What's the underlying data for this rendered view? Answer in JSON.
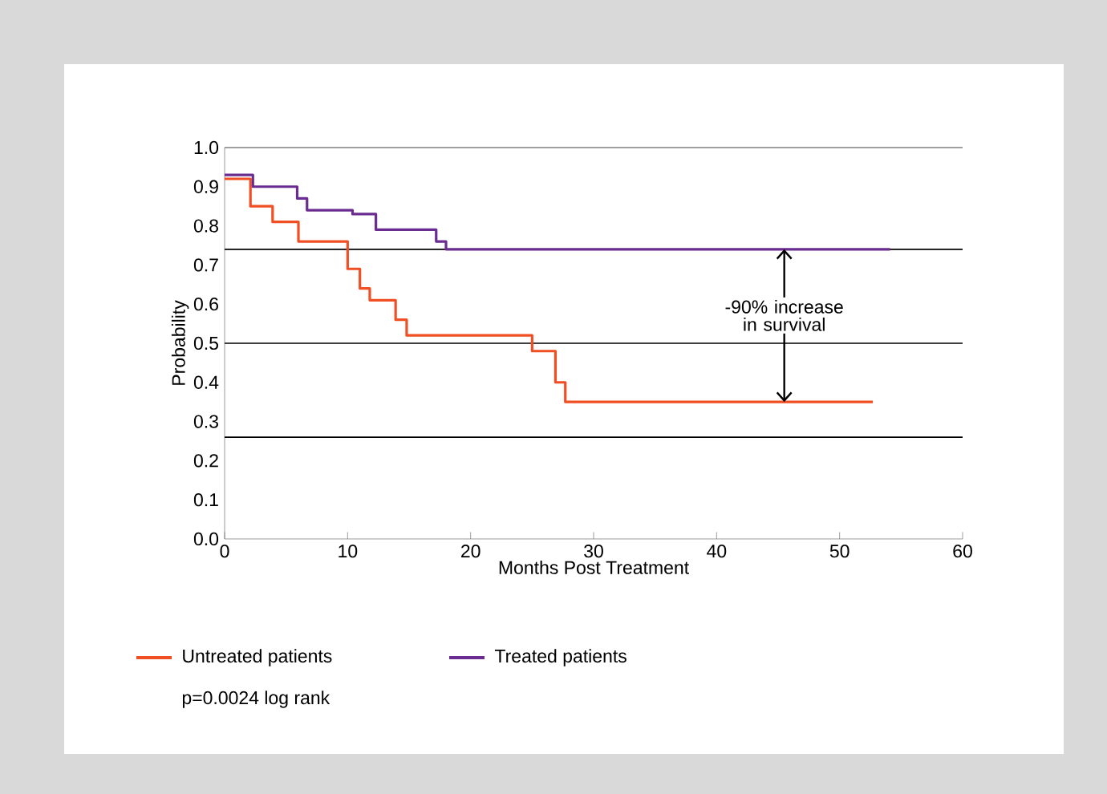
{
  "chart_data": {
    "type": "step",
    "xlabel": "Months Post Treatment",
    "ylabel": "Probability",
    "xlim": [
      0,
      60
    ],
    "xticks": [
      0,
      10,
      20,
      30,
      40,
      50,
      60
    ],
    "ylim": [
      0,
      1.0
    ],
    "yticks": [
      {
        "value": 0,
        "label": "0.0"
      },
      0.1,
      0.2,
      0.3,
      0.4,
      0.5,
      0.6,
      0.7,
      0.8,
      0.9,
      {
        "value": 1,
        "label": "1.0"
      }
    ],
    "series": [
      {
        "name": "Untreated patients",
        "color": "#f04e23",
        "x": [
          0,
          2.1,
          3.9,
          6.0,
          10.0,
          11.0,
          11.8,
          13.9,
          14.8,
          25.0,
          26.9,
          27.7,
          52.7
        ],
        "values": [
          0.92,
          0.85,
          0.81,
          0.76,
          0.69,
          0.64,
          0.61,
          0.56,
          0.52,
          0.48,
          0.4,
          0.35,
          0.35
        ]
      },
      {
        "name": "Treated patients",
        "color": "#6a2c91",
        "x": [
          0,
          2.3,
          5.9,
          6.7,
          10.4,
          12.3,
          17.2,
          18.0,
          54.1
        ],
        "values": [
          0.93,
          0.9,
          0.87,
          0.84,
          0.83,
          0.79,
          0.76,
          0.74,
          0.74
        ]
      }
    ],
    "ref_lines": [
      {
        "axis": "y",
        "value": 1.0,
        "color": "#7f7f7f"
      },
      {
        "axis": "y",
        "value": 0.74,
        "color": "#000000"
      },
      {
        "axis": "y",
        "value": 0.5,
        "color": "#000000"
      },
      {
        "axis": "y",
        "value": 0.26,
        "color": "#000000"
      }
    ],
    "annotations": [
      {
        "text": "-90% increase in survival",
        "x": 45.5,
        "y": 0.74
      },
      "p=0.0024 log rank"
    ],
    "legend": "bottom"
  }
}
